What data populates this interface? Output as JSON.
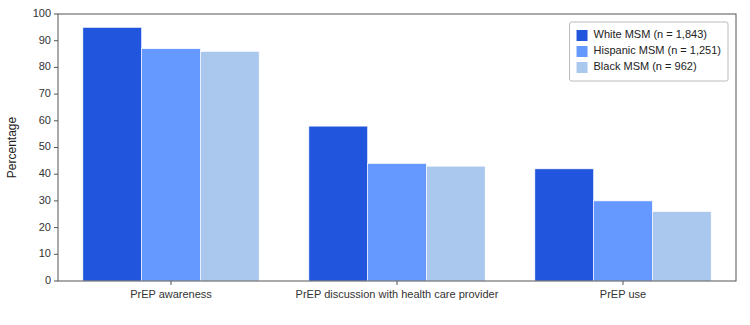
{
  "chart_data": {
    "type": "bar",
    "categories": [
      "PrEP awareness",
      "PrEP discussion with health care provider",
      "PrEP use"
    ],
    "series": [
      {
        "name": "White MSM (n = 1,843)",
        "color": "#2255dd",
        "values": [
          95,
          58,
          42
        ]
      },
      {
        "name": "Hispanic MSM (n = 1,251)",
        "color": "#6699ff",
        "values": [
          87,
          44,
          30
        ]
      },
      {
        "name": "Black MSM (n = 962)",
        "color": "#aac8ee",
        "values": [
          86,
          43,
          26
        ]
      }
    ],
    "ylabel": "Percentage",
    "ylim": [
      0,
      100
    ],
    "yticks": [
      0,
      10,
      20,
      30,
      40,
      50,
      60,
      70,
      80,
      90,
      100
    ],
    "grid": false,
    "legend": "upper right"
  }
}
